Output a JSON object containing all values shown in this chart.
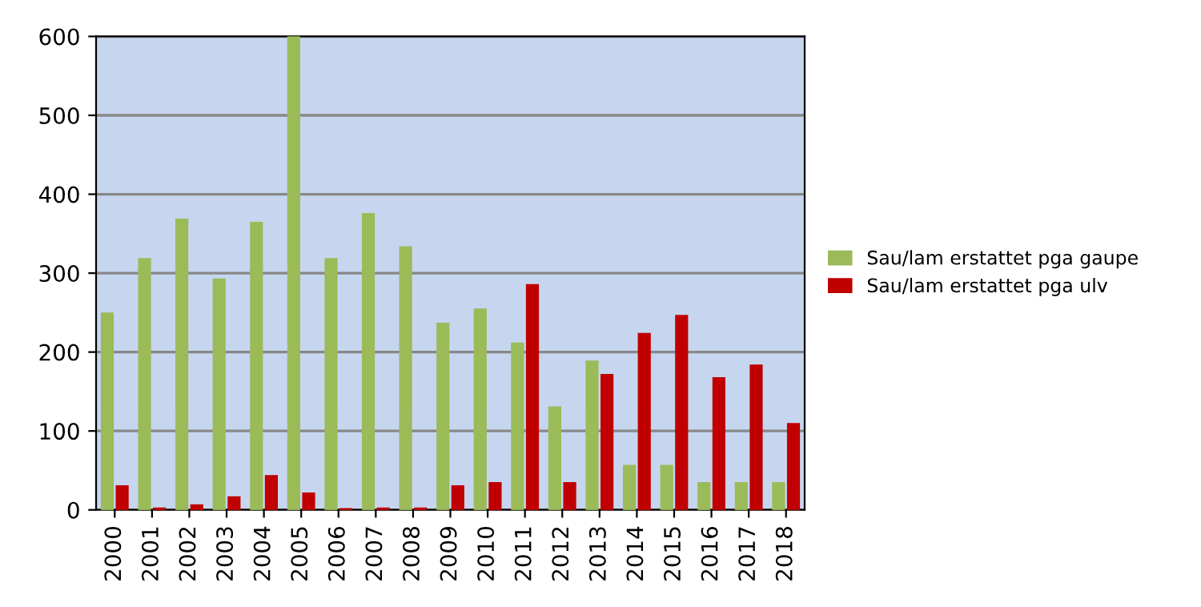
{
  "chart_data": {
    "type": "bar",
    "categories": [
      "2000",
      "2001",
      "2002",
      "2003",
      "2004",
      "2005",
      "2006",
      "2007",
      "2008",
      "2009",
      "2010",
      "2011",
      "2012",
      "2013",
      "2014",
      "2015",
      "2016",
      "2017",
      "2018"
    ],
    "series": [
      {
        "name": "Sau/lam erstattet pga gaupe",
        "color": "#9bbb59",
        "values": [
          249,
          318,
          368,
          292,
          364,
          600,
          318,
          375,
          333,
          236,
          254,
          211,
          130,
          188,
          56,
          56,
          34,
          34,
          34
        ]
      },
      {
        "name": "Sau/lam erstattet pga ulv",
        "color": "#c00000",
        "values": [
          30,
          2,
          6,
          16,
          43,
          21,
          1,
          2,
          2,
          30,
          34,
          285,
          34,
          171,
          223,
          246,
          167,
          183,
          109
        ]
      }
    ],
    "ylim": [
      0,
      600
    ],
    "yticks": [
      0,
      100,
      200,
      300,
      400,
      500,
      600
    ],
    "grid": "y",
    "legend": "right"
  }
}
